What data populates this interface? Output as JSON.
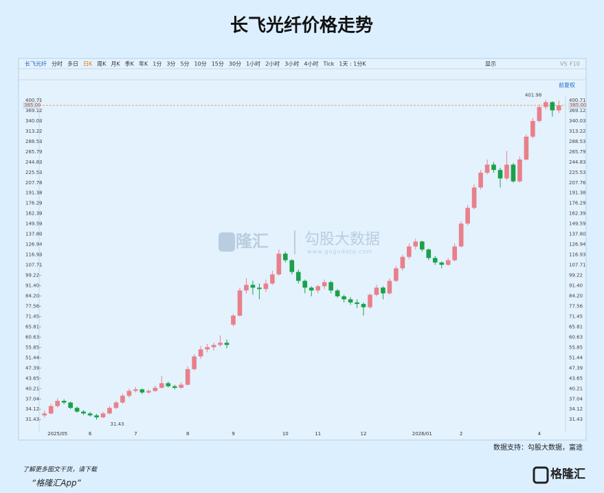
{
  "chart_data": {
    "type": "candlestick",
    "title": "长飞光纤价格走势",
    "toolbar": [
      "长飞光纤",
      "分时",
      "多日",
      "日K",
      "周K",
      "月K",
      "季K",
      "年K",
      "1分",
      "3分",
      "5分",
      "10分",
      "15分",
      "30分",
      "1小时",
      "2小时",
      "3小时",
      "4小时",
      "Tick",
      "1天 : 1分K"
    ],
    "toolbar_right": [
      "显示",
      "VS",
      "F10"
    ],
    "adjust_label": "前复权",
    "watermark": [
      "格隆汇",
      "勾股大数据",
      "www.gogudata.com"
    ],
    "source": "数据支持：勾股大数据，富途",
    "footer": [
      "了解更多图文干货，请下载",
      "“格隆汇App”"
    ],
    "logo": "格隆汇",
    "log_scale": true,
    "ylim": [
      28.2,
      414
    ],
    "yticks": [
      400.71,
      369.12,
      340.03,
      313.22,
      288.53,
      265.79,
      244.83,
      225.53,
      207.76,
      191.38,
      176.29,
      162.39,
      149.59,
      {
        "value": 137.8,
        "label": "137.80"
      },
      126.94,
      116.93,
      107.71,
      99.22,
      {
        "value": 91.4,
        "label": "91.40"
      },
      {
        "value": 84.2,
        "label": "84.20"
      },
      77.56,
      71.45,
      65.81,
      60.63,
      55.85,
      51.44,
      47.39,
      43.65,
      40.21,
      37.04,
      34.12,
      31.43
    ],
    "price_line": {
      "value": 385,
      "label": "385.00",
      "color": "#f0a050"
    },
    "max_label": 401.98,
    "min_label": 31.43,
    "up_color": "#e8808a",
    "down_color": "#1aa14a",
    "categories": [
      null,
      null,
      "2025/05",
      null,
      null,
      null,
      null,
      "6",
      null,
      null,
      null,
      null,
      null,
      null,
      "7",
      null,
      null,
      null,
      null,
      null,
      null,
      null,
      "8",
      null,
      null,
      null,
      null,
      null,
      null,
      "9",
      null,
      null,
      null,
      null,
      null,
      null,
      null,
      "10",
      null,
      null,
      null,
      null,
      "11",
      null,
      null,
      null,
      null,
      null,
      null,
      "12",
      null,
      null,
      null,
      null,
      null,
      null,
      null,
      null,
      "2026/01",
      null,
      null,
      null,
      null,
      null,
      "2",
      null,
      null,
      null,
      null,
      null,
      null,
      null,
      null,
      null,
      null,
      null,
      "4",
      null,
      null,
      null
    ],
    "candles": [
      [
        32.5,
        33.8,
        31.9,
        33.0
      ],
      [
        33.0,
        35.6,
        32.8,
        35.0
      ],
      [
        35.0,
        37.3,
        34.6,
        36.5
      ],
      [
        36.5,
        37.0,
        35.5,
        36.0
      ],
      [
        36.0,
        36.3,
        34.2,
        34.5
      ],
      [
        34.5,
        34.9,
        33.2,
        33.5
      ],
      [
        33.5,
        33.9,
        32.6,
        33.0
      ],
      [
        33.0,
        33.4,
        32.2,
        32.5
      ],
      [
        32.5,
        32.9,
        31.43,
        32.0
      ],
      [
        32.0,
        33.4,
        31.8,
        33.0
      ],
      [
        33.0,
        35.0,
        32.8,
        34.5
      ],
      [
        34.5,
        36.5,
        34.2,
        36.0
      ],
      [
        36.0,
        38.6,
        35.7,
        38.0
      ],
      [
        38.0,
        40.2,
        37.5,
        39.5
      ],
      [
        39.5,
        40.8,
        39.0,
        40.0
      ],
      [
        40.0,
        40.3,
        38.5,
        39.0
      ],
      [
        39.0,
        40.0,
        38.6,
        39.5
      ],
      [
        39.5,
        41.2,
        39.2,
        40.5
      ],
      [
        40.5,
        44.5,
        40.2,
        42.0
      ],
      [
        42.0,
        42.6,
        40.6,
        41.0
      ],
      [
        41.0,
        41.5,
        40.0,
        40.5
      ],
      [
        40.5,
        42.3,
        40.2,
        41.5
      ],
      [
        41.5,
        48.0,
        41.3,
        47.0
      ],
      [
        47.0,
        53.0,
        46.5,
        52.0
      ],
      [
        52.0,
        56.5,
        51.0,
        55.0
      ],
      [
        55.0,
        57.5,
        53.8,
        56.0
      ],
      [
        56.0,
        58.0,
        54.5,
        57.0
      ],
      [
        57.0,
        61.5,
        56.2,
        58.0
      ],
      [
        58.0,
        59.5,
        55.5,
        57.0
      ],
      [
        67.0,
        73.0,
        66.0,
        72.0
      ],
      [
        72.0,
        90.0,
        71.5,
        88.0
      ],
      [
        88.0,
        97.0,
        86.0,
        92.0
      ],
      [
        92.0,
        95.0,
        85.0,
        90.0
      ],
      [
        90.0,
        93.0,
        82.0,
        89.0
      ],
      [
        89.0,
        96.0,
        87.0,
        93.0
      ],
      [
        93.0,
        103.0,
        92.0,
        100.0
      ],
      [
        100.0,
        122.0,
        99.0,
        118.0
      ],
      [
        118.0,
        120.0,
        110.0,
        112.0
      ],
      [
        112.0,
        113.0,
        100.0,
        102.0
      ],
      [
        102.0,
        104.0,
        93.0,
        95.0
      ],
      [
        95.0,
        96.0,
        86.0,
        90.0
      ],
      [
        90.0,
        91.0,
        84.0,
        88.0
      ],
      [
        88.0,
        92.0,
        86.0,
        91.0
      ],
      [
        91.0,
        96.0,
        89.0,
        94.0
      ],
      [
        94.0,
        95.0,
        86.0,
        88.0
      ],
      [
        88.0,
        89.0,
        83.0,
        84.0
      ],
      [
        84.0,
        85.0,
        80.0,
        82.0
      ],
      [
        82.0,
        83.5,
        78.5,
        80.0
      ],
      [
        80.0,
        82.0,
        76.5,
        79.0
      ],
      [
        79.0,
        80.0,
        72.0,
        77.0
      ],
      [
        77.0,
        86.0,
        76.0,
        85.0
      ],
      [
        85.0,
        92.0,
        84.0,
        90.0
      ],
      [
        90.0,
        91.0,
        82.0,
        86.0
      ],
      [
        86.0,
        97.0,
        85.0,
        95.0
      ],
      [
        95.0,
        107.0,
        94.0,
        105.0
      ],
      [
        105.0,
        117.0,
        103.0,
        115.0
      ],
      [
        115.0,
        128.0,
        113.0,
        125.0
      ],
      [
        125.0,
        133.0,
        122.0,
        130.0
      ],
      [
        130.0,
        131.0,
        120.0,
        122.0
      ],
      [
        122.0,
        123.0,
        112.0,
        114.0
      ],
      [
        114.0,
        116.0,
        108.0,
        110.0
      ],
      [
        110.0,
        111.0,
        105.0,
        108.0
      ],
      [
        108.0,
        114.0,
        107.0,
        112.0
      ],
      [
        112.0,
        128.0,
        111.0,
        125.0
      ],
      [
        125.0,
        153.0,
        124.0,
        150.0
      ],
      [
        150.0,
        174.0,
        148.0,
        170.0
      ],
      [
        170.0,
        205.0,
        168.0,
        200.0
      ],
      [
        200.0,
        230.0,
        197.0,
        225.0
      ],
      [
        225.0,
        250.0,
        222.0,
        240.0
      ],
      [
        240.0,
        245.0,
        225.0,
        230.0
      ],
      [
        230.0,
        234.0,
        200.0,
        215.0
      ],
      [
        215.0,
        268.0,
        212.0,
        240.0
      ],
      [
        240.0,
        243.0,
        208.0,
        210.0
      ],
      [
        210.0,
        256.0,
        208.0,
        250.0
      ],
      [
        250.0,
        305.0,
        248.0,
        300.0
      ],
      [
        300.0,
        348.0,
        296.0,
        340.0
      ],
      [
        340.0,
        388.0,
        336.0,
        380.0
      ],
      [
        380.0,
        401.98,
        372.0,
        395.0
      ],
      [
        395.0,
        398.0,
        352.0,
        370.0
      ],
      [
        370.0,
        400.0,
        362.0,
        385.0
      ]
    ]
  }
}
